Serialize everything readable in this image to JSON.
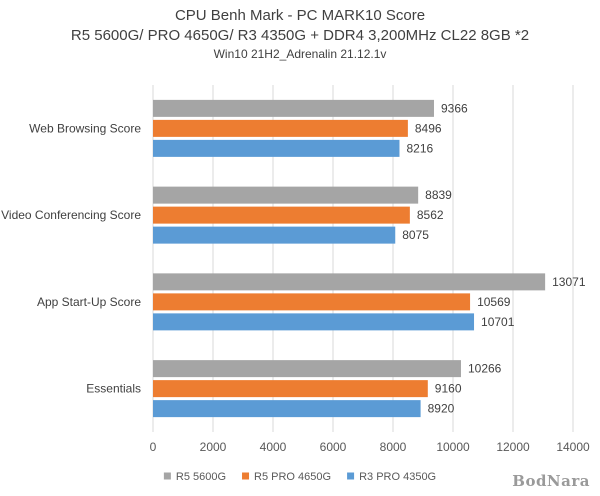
{
  "chart_data": {
    "type": "bar",
    "orientation": "horizontal",
    "title": "CPU Benh Mark - PC MARK10 Score",
    "subtitle": "R5 5600G/ PRO 4650G/ R3 4350G + DDR4 3,200MHz CL22 8GB *2",
    "subtitle2": "Win10 21H2_Adrenalin 21.12.1v",
    "categories": [
      "Web Browsing Score",
      "Video Conferencing Score",
      "App Start-Up Score",
      "Essentials"
    ],
    "series": [
      {
        "name": "R5 5600G",
        "color": "#a5a5a5",
        "values": [
          9366,
          8839,
          13071,
          10266
        ]
      },
      {
        "name": "R5 PRO 4650G",
        "color": "#ed7d31",
        "values": [
          8496,
          8562,
          10569,
          9160
        ]
      },
      {
        "name": "R3 PRO 4350G",
        "color": "#5b9bd5",
        "values": [
          8216,
          8075,
          10701,
          8920
        ]
      }
    ],
    "xlim": [
      0,
      14000
    ],
    "xticks": [
      "0",
      "2000",
      "4000",
      "6000",
      "8000",
      "10000",
      "12000",
      "14000"
    ],
    "grid": true,
    "legend": "bottom",
    "data_labels": true
  },
  "watermark": "BodNara"
}
